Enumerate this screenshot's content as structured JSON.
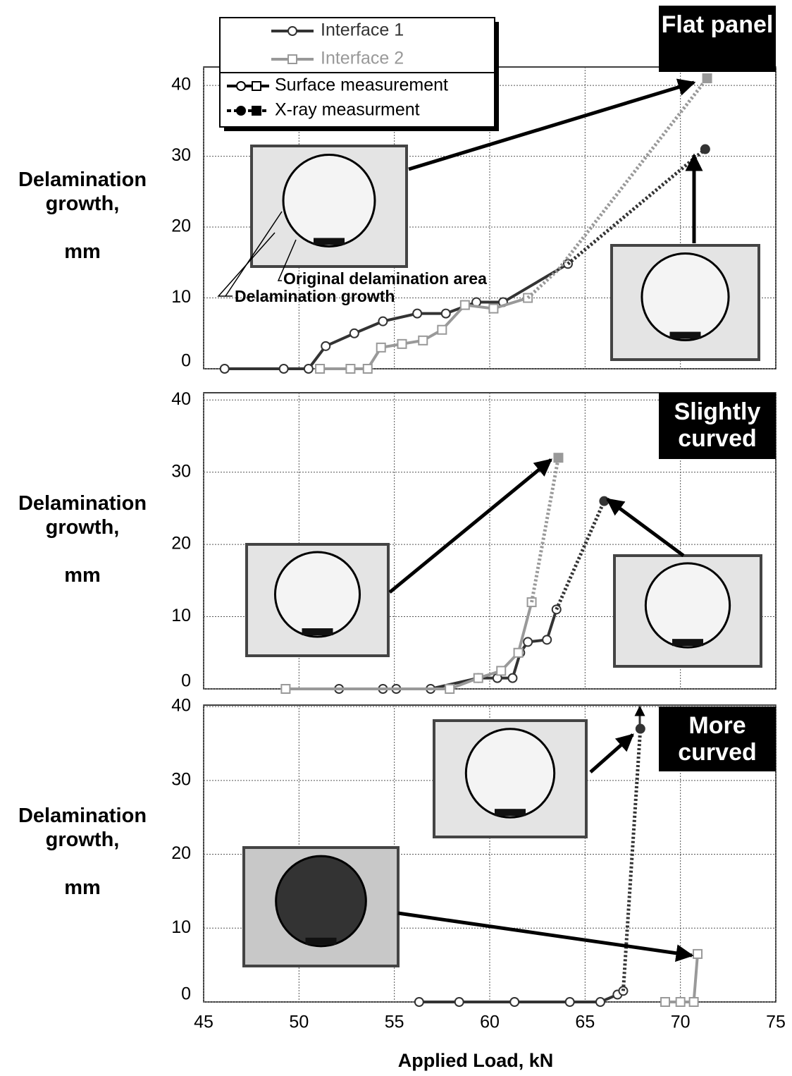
{
  "chart_data": [
    {
      "type": "line",
      "panel_label": "Flat panel",
      "ylabel": "Delamination growth,\n\nmm",
      "xlim": [
        45,
        75
      ],
      "xticks": [
        45,
        50,
        55,
        60,
        65,
        70,
        75
      ],
      "ylim": [
        0,
        42.6
      ],
      "yticks": [
        0,
        10,
        20,
        30,
        40
      ],
      "grid": true,
      "annotations": [
        "Original delamination area",
        "Delamination growth"
      ],
      "series": [
        {
          "name": "Interface 1",
          "method": "Surface measurement",
          "color": "#333333",
          "x": [
            46.1,
            49.2,
            50.5,
            51.4,
            52.9,
            54.4,
            56.2,
            57.7,
            59.3,
            60.7,
            64.1
          ],
          "values": [
            0,
            0,
            0,
            3.2,
            5,
            6.7,
            7.8,
            7.8,
            9.4,
            9.4,
            14.8
          ]
        },
        {
          "name": "Interface 2",
          "method": "Surface measurement",
          "color": "#999999",
          "x": [
            51.1,
            52.7,
            53.6,
            54.3,
            55.4,
            56.5,
            57.5,
            58.7,
            60.2,
            62
          ],
          "values": [
            0,
            0,
            0,
            3,
            3.5,
            4,
            5.5,
            9,
            8.5,
            10
          ]
        },
        {
          "name": "Interface 1",
          "method": "X-ray measurment",
          "color": "#333333",
          "x": [
            64.1,
            71.3
          ],
          "values": [
            14.8,
            31
          ]
        },
        {
          "name": "Interface 2",
          "method": "X-ray measurment",
          "color": "#999999",
          "x": [
            62,
            63.6,
            71.4
          ],
          "values": [
            10,
            14,
            41
          ]
        }
      ]
    },
    {
      "type": "line",
      "panel_label": "Slightly curved",
      "ylabel": "Delamination growth,\n\nmm",
      "xlim": [
        45,
        75
      ],
      "xticks": [
        45,
        50,
        55,
        60,
        65,
        70,
        75
      ],
      "ylim": [
        0,
        41
      ],
      "yticks": [
        0,
        10,
        20,
        30,
        40
      ],
      "grid": true,
      "series": [
        {
          "name": "Interface 1",
          "method": "Surface measurement",
          "color": "#333333",
          "x": [
            52.1,
            54.4,
            55.1,
            56.9,
            59.4,
            60.4,
            61.2,
            61.6,
            62,
            63,
            63.5
          ],
          "values": [
            0,
            0,
            0,
            0,
            1.5,
            1.5,
            1.5,
            5,
            6.5,
            6.8,
            11
          ]
        },
        {
          "name": "Interface 2",
          "method": "Surface measurement",
          "color": "#999999",
          "x": [
            49.3,
            57.9,
            59.4,
            60.6,
            61.5,
            62.2
          ],
          "values": [
            0,
            0,
            1.5,
            2.5,
            5,
            12
          ]
        },
        {
          "name": "Interface 1",
          "method": "X-ray measurment",
          "color": "#333333",
          "x": [
            63.5,
            66
          ],
          "values": [
            11,
            26
          ]
        },
        {
          "name": "Interface 2",
          "method": "X-ray measurment",
          "color": "#999999",
          "x": [
            62.2,
            63.6
          ],
          "values": [
            12,
            32
          ]
        }
      ]
    },
    {
      "type": "line",
      "panel_label": "More curved",
      "ylabel": "Delamination growth,\n\nmm",
      "xlabel": "Applied Load,   kN",
      "xlim": [
        45,
        75
      ],
      "xticks": [
        45,
        50,
        55,
        60,
        65,
        70,
        75
      ],
      "ylim": [
        0,
        40.2
      ],
      "yticks": [
        0,
        10,
        20,
        30,
        40
      ],
      "grid": true,
      "series": [
        {
          "name": "Interface 1",
          "method": "Surface measurement",
          "color": "#333333",
          "x": [
            56.3,
            58.4,
            61.3,
            64.2,
            65.8,
            66.7,
            67
          ],
          "values": [
            0,
            0,
            0,
            0,
            0,
            1,
            1.5
          ]
        },
        {
          "name": "Interface 2",
          "method": "Surface measurement",
          "color": "#999999",
          "x": [
            69.2,
            70,
            70.7,
            70.9
          ],
          "values": [
            0,
            0,
            0,
            6.5
          ]
        },
        {
          "name": "Interface 1",
          "method": "X-ray measurment",
          "color": "#333333",
          "x": [
            67,
            67.9
          ],
          "values": [
            1.5,
            37
          ]
        }
      ]
    }
  ]
}
